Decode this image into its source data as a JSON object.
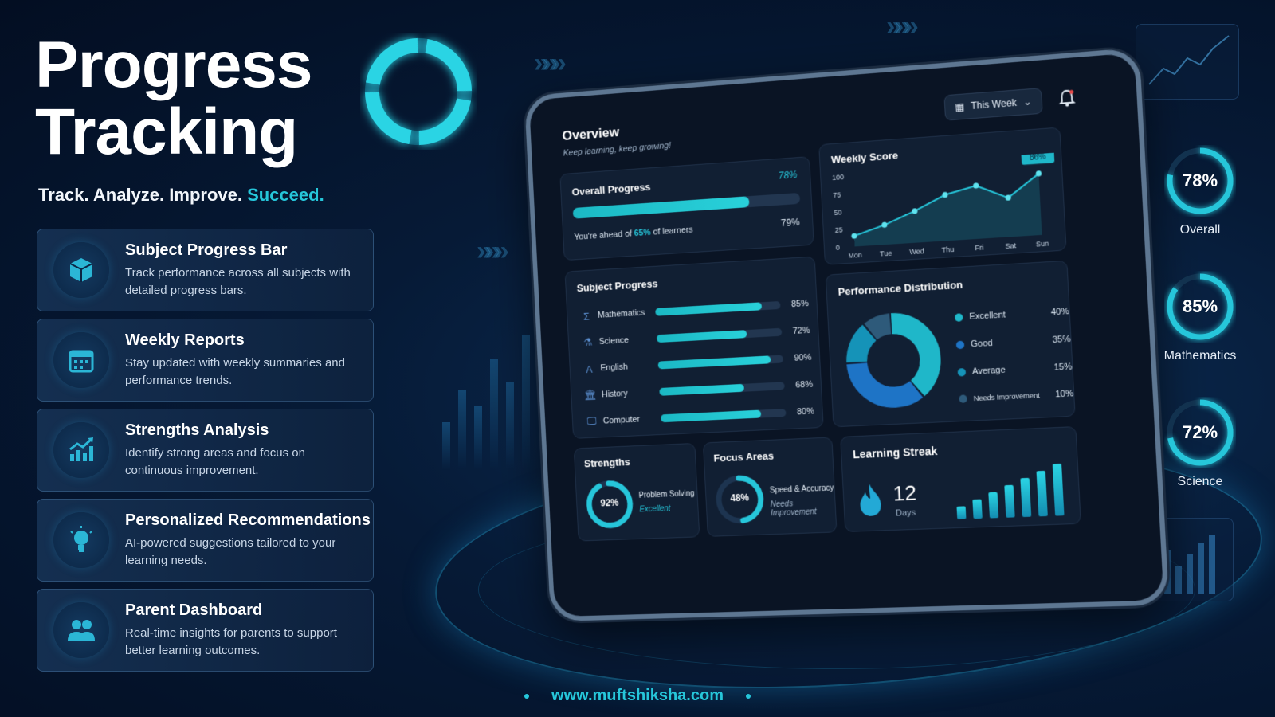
{
  "hero": {
    "title_line1": "Progress",
    "title_line2": "Tracking",
    "tagline_main": "Track. Analyze. Improve.",
    "tagline_accent": "Succeed."
  },
  "features": [
    {
      "icon": "cube-icon",
      "title": "Subject Progress Bar",
      "desc": "Track performance across all subjects with detailed progress bars."
    },
    {
      "icon": "calendar-icon",
      "title": "Weekly Reports",
      "desc": "Stay updated with weekly summaries and performance trends."
    },
    {
      "icon": "growth-chart-icon",
      "title": "Strengths Analysis",
      "desc": "Identify strong areas and focus on continuous improvement."
    },
    {
      "icon": "lightbulb-icon",
      "title": "Personalized Recommendations",
      "desc": "AI-powered suggestions tailored to your learning needs."
    },
    {
      "icon": "users-icon",
      "title": "Parent Dashboard",
      "desc": "Real-time insights for parents to support better learning outcomes."
    }
  ],
  "dashboard": {
    "title": "Overview",
    "subtitle": "Keep learning, keep growing!",
    "period_select": "This Week",
    "overall": {
      "title": "Overall Progress",
      "percent_label": "78%",
      "value": 78,
      "ahead_prefix": "You're ahead of ",
      "ahead_value": "65%",
      "ahead_suffix": " of learners",
      "secondary_label": "79%"
    },
    "weekly_score": {
      "title": "Weekly Score",
      "days": [
        "Mon",
        "Tue",
        "Wed",
        "Thu",
        "Fri",
        "Sat",
        "Sun"
      ],
      "values": [
        15,
        28,
        45,
        65,
        75,
        55,
        86
      ],
      "y_ticks": [
        "100",
        "75",
        "50",
        "25",
        "0"
      ],
      "y_max": 100,
      "highlight_label": "86%"
    },
    "subject_progress": {
      "title": "Subject Progress",
      "subjects": [
        {
          "name": "Mathematics",
          "icon": "sigma-icon",
          "glyph": "Σ",
          "value": 85,
          "label": "85%"
        },
        {
          "name": "Science",
          "icon": "flask-icon",
          "glyph": "⚗",
          "value": 72,
          "label": "72%"
        },
        {
          "name": "English",
          "icon": "letter-a-icon",
          "glyph": "A",
          "value": 90,
          "label": "90%"
        },
        {
          "name": "History",
          "icon": "museum-icon",
          "glyph": "🏛",
          "value": 68,
          "label": "68%"
        },
        {
          "name": "Computer",
          "icon": "monitor-icon",
          "glyph": "🖵",
          "value": 80,
          "label": "80%"
        }
      ]
    },
    "distribution": {
      "title": "Performance Distribution",
      "items": [
        {
          "name": "Excellent",
          "value": 40,
          "label": "40%",
          "color": "#1fb7c9"
        },
        {
          "name": "Good",
          "value": 35,
          "label": "35%",
          "color": "#1e74c6"
        },
        {
          "name": "Average",
          "value": 15,
          "label": "15%",
          "color": "#1593b8"
        },
        {
          "name": "Needs Improvement",
          "value": 10,
          "label": "10%",
          "color": "#2e5a7a"
        }
      ]
    },
    "strengths": {
      "title": "Strengths",
      "value": 92,
      "label": "92%",
      "skill": "Problem Solving",
      "status": "Excellent"
    },
    "focus": {
      "title": "Focus Areas",
      "value": 48,
      "label": "48%",
      "skill": "Speed & Accuracy",
      "status": "Needs Improvement"
    },
    "streak": {
      "title": "Learning Streak",
      "count": "12",
      "unit": "Days",
      "bars": [
        2,
        3,
        4,
        5,
        6,
        7,
        8
      ]
    }
  },
  "stats": [
    {
      "label": "Overall",
      "value": 78,
      "text": "78%"
    },
    {
      "label": "Mathematics",
      "value": 85,
      "text": "85%"
    },
    {
      "label": "Science",
      "value": 72,
      "text": "72%"
    }
  ],
  "footer": {
    "url": "www.muftshiksha.com"
  },
  "colors": {
    "accent": "#26c6da",
    "bg": "#061a36",
    "card": "#111f33"
  }
}
